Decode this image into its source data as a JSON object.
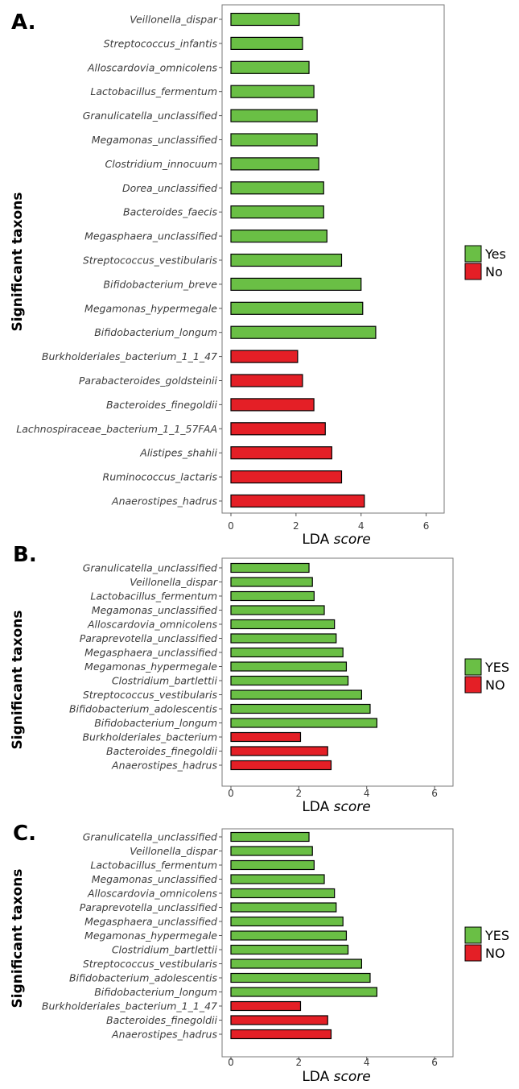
{
  "colors": {
    "yes": "#6abf45",
    "no": "#e41f26"
  },
  "chart_data": [
    {
      "type": "bar",
      "orientation": "horizontal",
      "panel": "A.",
      "ylabel": "Significant taxons",
      "xlabel": "LDA",
      "xlabel_italic": "score",
      "xlim": [
        0,
        6.2
      ],
      "xticks": [
        0,
        2,
        4,
        6
      ],
      "legend": [
        {
          "label": "Yes",
          "group": "yes"
        },
        {
          "label": "No",
          "group": "no"
        }
      ],
      "categories": [
        "Veillonella_dispar",
        "Streptococcus_infantis",
        "Alloscardovia_omnicolens",
        "Lactobacillus_fermentum",
        "Granulicatella_unclassified",
        "Megamonas_unclassified",
        "Clostridium_innocuum",
        "Dorea_unclassified",
        "Bacteroides_faecis",
        "Megasphaera_unclassified",
        "Streptococcus_vestibularis",
        "Bifidobacterium_breve",
        "Megamonas_hypermegale",
        "Bifidobacterium_longum",
        "Burkholderiales_bacterium_1_1_47",
        "Parabacteroides_goldsteinii",
        "Bacteroides_finegoldii",
        "Lachnospiraceae_bacterium_1_1_57FAA",
        "Alistipes_shahii",
        "Ruminococcus_lactaris",
        "Anaerostipes_hadrus"
      ],
      "values": [
        2.1,
        2.2,
        2.4,
        2.55,
        2.65,
        2.65,
        2.7,
        2.85,
        2.85,
        2.95,
        3.4,
        4.0,
        4.05,
        4.45,
        2.05,
        2.2,
        2.55,
        2.9,
        3.1,
        3.4,
        4.1
      ],
      "groups": [
        "yes",
        "yes",
        "yes",
        "yes",
        "yes",
        "yes",
        "yes",
        "yes",
        "yes",
        "yes",
        "yes",
        "yes",
        "yes",
        "yes",
        "no",
        "no",
        "no",
        "no",
        "no",
        "no",
        "no"
      ]
    },
    {
      "type": "bar",
      "orientation": "horizontal",
      "panel": "B.",
      "ylabel": "Significant taxons",
      "xlabel": "LDA",
      "xlabel_italic": "score",
      "xlim": [
        0,
        6.2
      ],
      "xticks": [
        0,
        2,
        4,
        6
      ],
      "legend": [
        {
          "label": "YES",
          "group": "yes"
        },
        {
          "label": "NO",
          "group": "no"
        }
      ],
      "categories": [
        "Granulicatella_unclassified",
        "Veillonella_dispar",
        "Lactobacillus_fermentum",
        "Megamonas_unclassified",
        "Alloscardovia_omnicolens",
        "Paraprevotella_unclassified",
        "Megasphaera_unclassified",
        "Megamonas_hypermegale",
        "Clostridium_bartlettii",
        "Streptococcus_vestibularis",
        "Bifidobacterium_adolescentis",
        "Bifidobacterium_longum",
        "Burkholderiales_bacterium",
        "Bacteroides_finegoldii",
        "Anaerostipes_hadrus"
      ],
      "values": [
        2.3,
        2.4,
        2.45,
        2.75,
        3.05,
        3.1,
        3.3,
        3.4,
        3.45,
        3.85,
        4.1,
        4.3,
        2.05,
        2.85,
        2.95
      ],
      "groups": [
        "yes",
        "yes",
        "yes",
        "yes",
        "yes",
        "yes",
        "yes",
        "yes",
        "yes",
        "yes",
        "yes",
        "yes",
        "no",
        "no",
        "no"
      ]
    },
    {
      "type": "bar",
      "orientation": "horizontal",
      "panel": "C.",
      "ylabel": "Significant taxons",
      "xlabel": "LDA",
      "xlabel_italic": "score",
      "xlim": [
        0,
        6.2
      ],
      "xticks": [
        0,
        2,
        4,
        6
      ],
      "legend": [
        {
          "label": "YES",
          "group": "yes"
        },
        {
          "label": "NO",
          "group": "no"
        }
      ],
      "categories": [
        "Granulicatella_unclassified",
        "Veillonella_dispar",
        "Lactobacillus_fermentum",
        "Megamonas_unclassified",
        "Alloscardovia_omnicolens",
        "Paraprevotella_unclassified",
        "Megasphaera_unclassified",
        "Megamonas_hypermegale",
        "Clostridium_bartlettii",
        "Streptococcus_vestibularis",
        "Bifidobacterium_adolescentis",
        "Bifidobacterium_longum",
        "Burkholderiales_bacterium_1_1_47",
        "Bacteroides_finegoldii",
        "Anaerostipes_hadrus"
      ],
      "values": [
        2.3,
        2.4,
        2.45,
        2.75,
        3.05,
        3.1,
        3.3,
        3.4,
        3.45,
        3.85,
        4.1,
        4.3,
        2.05,
        2.85,
        2.95
      ],
      "groups": [
        "yes",
        "yes",
        "yes",
        "yes",
        "yes",
        "yes",
        "yes",
        "yes",
        "yes",
        "yes",
        "yes",
        "yes",
        "no",
        "no",
        "no"
      ]
    }
  ]
}
